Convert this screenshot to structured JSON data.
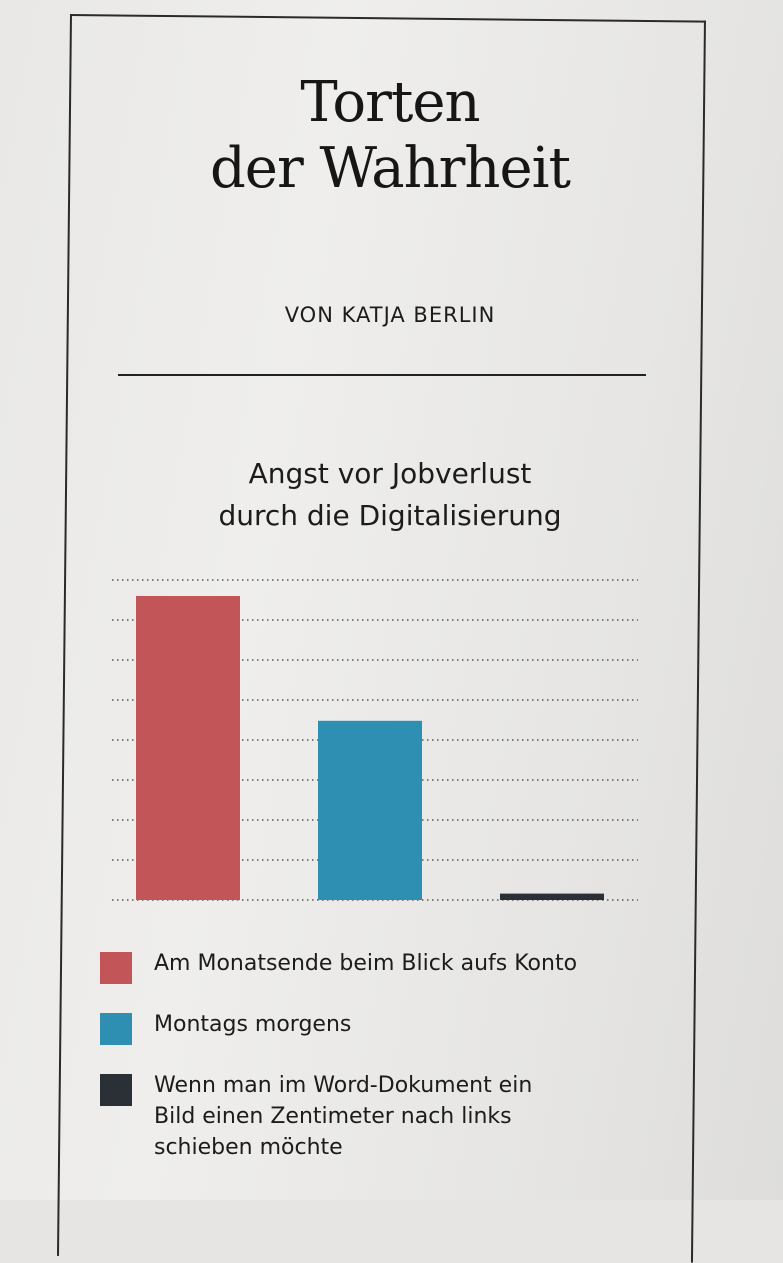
{
  "header": {
    "title_line1": "Torten",
    "title_line2": "der Wahrheit",
    "author": "VON KATJA BERLIN"
  },
  "chart_data": {
    "type": "bar",
    "title_line1": "Angst vor Jobverlust",
    "title_line2": "durch die Digitalisierung",
    "categories": [
      "Am Monatsende beim Blick aufs Konto",
      "Montags morgens",
      "Wenn man im Word-Dokument ein Bild einen Zentimeter nach links schieben möchte"
    ],
    "values": [
      95,
      56,
      2
    ],
    "ylim": [
      0,
      100
    ],
    "grid": true,
    "colors": [
      "#c25557",
      "#2e8fb3",
      "#2b2f36"
    ],
    "legend_position": "bottom"
  },
  "legend": {
    "items": [
      {
        "lines": [
          "Am Monatsende beim Blick aufs Konto"
        ]
      },
      {
        "lines": [
          "Montags morgens"
        ]
      },
      {
        "lines": [
          "Wenn man im Word-Dokument ein",
          "Bild einen Zentimeter nach links",
          "schieben möchte"
        ]
      }
    ]
  }
}
